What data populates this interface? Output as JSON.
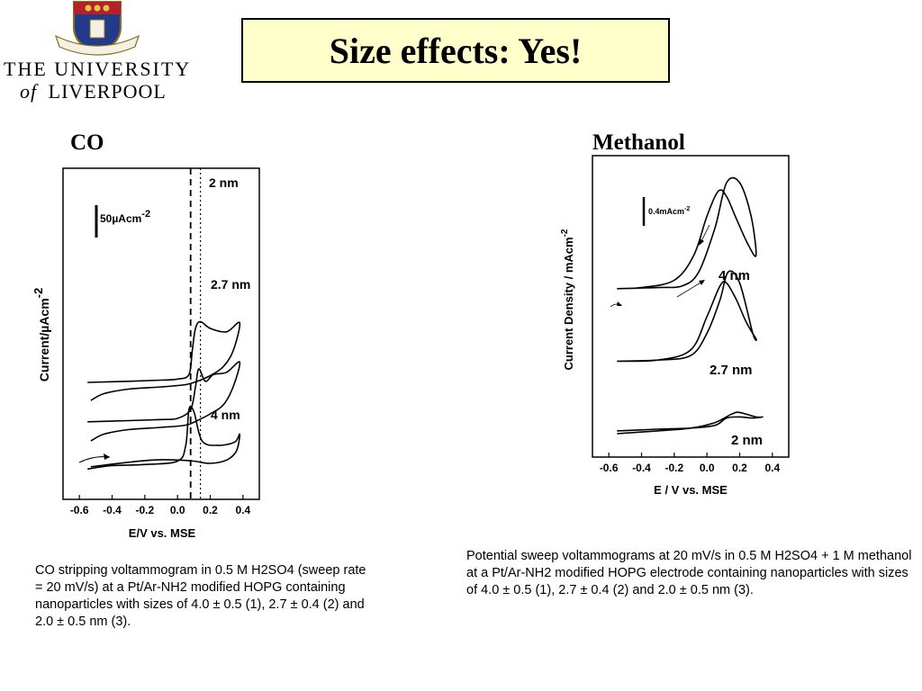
{
  "logo": {
    "line1": "THE UNIVERSITY",
    "of": "of",
    "line2": "LIVERPOOL",
    "crest": "university-crest"
  },
  "slide_title": "Size effects: Yes!",
  "colors": {
    "title_bg": "#ffffcc",
    "ink": "#000000"
  },
  "captions": {
    "left": "CO stripping voltammogram in 0.5 M H2SO4 (sweep rate = 20 mV/s) at a Pt/Ar-NH2 modified HOPG containing nanoparticles with sizes of 4.0 ± 0.5 (1), 2.7 ± 0.4 (2) and 2.0 ± 0.5 nm (3).",
    "right": "Potential sweep voltammograms at 20 mV/s in 0.5 M H2SO4 + 1 M methanol at a  Pt/Ar-NH2 modified HOPG electrode containing nanoparticles with sizes of 4.0 ± 0.5 (1), 2.7 ± 0.4 (2) and  2.0 ± 0.5 nm (3)."
  },
  "chart_data": [
    {
      "type": "line",
      "title": "CO",
      "xlabel": "E/V vs. MSE",
      "ylabel": "Current/µAcm-2",
      "ylabel_main": "Current/",
      "ylabel_mu": "µ",
      "ylabel_unit": "Acm",
      "ylabel_sup": "-2",
      "xlim": [
        -0.7,
        0.5
      ],
      "xticks": [
        "-0.6",
        "-0.4",
        "-0.2",
        "0.0",
        "0.2",
        "0.4"
      ],
      "xtick_values": [
        -0.6,
        -0.4,
        -0.2,
        0.0,
        0.2,
        0.4
      ],
      "scale_bar": {
        "value": "50",
        "mu": "µ",
        "unit": "Acm",
        "sup": "-2"
      },
      "vlines": [
        {
          "x": 0.08,
          "style": "dashed"
        },
        {
          "x": 0.14,
          "style": "dotted"
        }
      ],
      "series": [
        {
          "label": "2 nm",
          "offset": 3.6,
          "forward": [
            [
              -0.55,
              0.2
            ],
            [
              -0.3,
              0.25
            ],
            [
              -0.1,
              0.3
            ],
            [
              0.0,
              0.35
            ],
            [
              0.07,
              0.55
            ],
            [
              0.09,
              1.6
            ],
            [
              0.11,
              2.6
            ],
            [
              0.14,
              2.9
            ],
            [
              0.2,
              2.6
            ],
            [
              0.3,
              2.45
            ],
            [
              0.38,
              2.85
            ]
          ],
          "reverse": [
            [
              0.38,
              2.85
            ],
            [
              0.34,
              1.6
            ],
            [
              0.28,
              0.9
            ],
            [
              0.2,
              0.5
            ],
            [
              0.12,
              0.25
            ],
            [
              0.05,
              0.1
            ],
            [
              -0.1,
              0.0
            ],
            [
              -0.3,
              -0.1
            ],
            [
              -0.45,
              -0.3
            ],
            [
              -0.53,
              -0.6
            ]
          ]
        },
        {
          "label": "2.7 nm",
          "offset": 1.8,
          "forward": [
            [
              -0.55,
              0.25
            ],
            [
              -0.3,
              0.3
            ],
            [
              -0.1,
              0.35
            ],
            [
              0.0,
              0.4
            ],
            [
              0.08,
              0.8
            ],
            [
              0.11,
              1.8
            ],
            [
              0.13,
              2.6
            ],
            [
              0.17,
              2.05
            ],
            [
              0.22,
              2.35
            ],
            [
              0.3,
              2.45
            ],
            [
              0.38,
              2.9
            ]
          ],
          "reverse": [
            [
              0.38,
              2.9
            ],
            [
              0.34,
              1.8
            ],
            [
              0.28,
              1.0
            ],
            [
              0.2,
              0.6
            ],
            [
              0.12,
              0.3
            ],
            [
              0.05,
              0.1
            ],
            [
              -0.1,
              0.0
            ],
            [
              -0.3,
              -0.1
            ],
            [
              -0.45,
              -0.3
            ],
            [
              -0.53,
              -0.6
            ]
          ]
        },
        {
          "label": "4 nm",
          "offset": 0.0,
          "forward": [
            [
              -0.55,
              -0.05
            ],
            [
              -0.4,
              0.1
            ],
            [
              -0.2,
              0.15
            ],
            [
              0.0,
              0.3
            ],
            [
              0.05,
              1.0
            ],
            [
              0.07,
              2.6
            ],
            [
              0.1,
              2.5
            ],
            [
              0.15,
              1.2
            ],
            [
              0.25,
              1.0
            ],
            [
              0.35,
              1.15
            ],
            [
              0.38,
              1.5
            ]
          ],
          "reverse": [
            [
              0.38,
              1.5
            ],
            [
              0.36,
              0.75
            ],
            [
              0.3,
              0.35
            ],
            [
              0.2,
              0.2
            ],
            [
              0.1,
              0.3
            ],
            [
              0.0,
              0.35
            ],
            [
              -0.15,
              0.35
            ],
            [
              -0.3,
              0.25
            ],
            [
              -0.45,
              0.12
            ],
            [
              -0.53,
              0.05
            ]
          ]
        }
      ]
    },
    {
      "type": "line",
      "title": "Methanol",
      "xlabel": "E / V vs. MSE",
      "ylabel": "Current Density / mAcm-2",
      "ylabel_main": "Current Density / mAcm",
      "ylabel_sup": "-2",
      "xlim": [
        -0.7,
        0.5
      ],
      "xticks": [
        "-0.6",
        "-0.4",
        "-0.2",
        "0.0",
        "0.2",
        "0.4"
      ],
      "xtick_values": [
        -0.6,
        -0.4,
        -0.2,
        0.0,
        0.2,
        0.4
      ],
      "scale_bar": {
        "value": "0.4",
        "unit": "mAcm",
        "sup": "-2"
      },
      "series": [
        {
          "label": "4 nm",
          "offset": 2.6,
          "forward": [
            [
              -0.55,
              0.0
            ],
            [
              -0.3,
              0.02
            ],
            [
              -0.15,
              0.05
            ],
            [
              -0.05,
              0.3
            ],
            [
              0.05,
              1.1
            ],
            [
              0.12,
              1.9
            ],
            [
              0.2,
              1.9
            ],
            [
              0.27,
              1.3
            ],
            [
              0.3,
              0.6
            ]
          ],
          "reverse": [
            [
              0.3,
              0.6
            ],
            [
              0.25,
              0.8
            ],
            [
              0.18,
              1.25
            ],
            [
              0.12,
              1.65
            ],
            [
              0.07,
              1.75
            ],
            [
              0.0,
              1.3
            ],
            [
              -0.08,
              0.6
            ],
            [
              -0.2,
              0.15
            ],
            [
              -0.4,
              0.02
            ],
            [
              -0.55,
              0.0
            ]
          ]
        },
        {
          "label": "2.7 nm",
          "offset": 1.3,
          "forward": [
            [
              -0.55,
              0.0
            ],
            [
              -0.3,
              0.02
            ],
            [
              -0.1,
              0.1
            ],
            [
              0.0,
              0.5
            ],
            [
              0.08,
              1.1
            ],
            [
              0.13,
              1.6
            ],
            [
              0.2,
              1.4
            ],
            [
              0.28,
              0.5
            ],
            [
              0.3,
              0.4
            ]
          ],
          "reverse": [
            [
              0.3,
              0.4
            ],
            [
              0.24,
              0.7
            ],
            [
              0.18,
              1.1
            ],
            [
              0.12,
              1.4
            ],
            [
              0.08,
              1.35
            ],
            [
              0.0,
              0.8
            ],
            [
              -0.1,
              0.2
            ],
            [
              -0.3,
              0.02
            ],
            [
              -0.55,
              0.0
            ]
          ]
        },
        {
          "label": "2 nm",
          "offset": 0.0,
          "forward": [
            [
              -0.55,
              0.0
            ],
            [
              -0.3,
              0.05
            ],
            [
              -0.1,
              0.1
            ],
            [
              0.05,
              0.2
            ],
            [
              0.15,
              0.35
            ],
            [
              0.2,
              0.38
            ],
            [
              0.3,
              0.3
            ],
            [
              0.34,
              0.3
            ]
          ],
          "reverse": [
            [
              0.34,
              0.3
            ],
            [
              0.28,
              0.28
            ],
            [
              0.2,
              0.3
            ],
            [
              0.12,
              0.28
            ],
            [
              0.05,
              0.15
            ],
            [
              -0.1,
              0.1
            ],
            [
              -0.3,
              0.08
            ],
            [
              -0.55,
              0.05
            ]
          ]
        }
      ]
    }
  ]
}
